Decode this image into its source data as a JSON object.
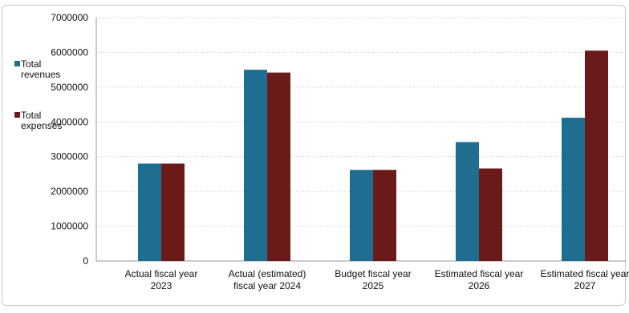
{
  "top_caption": "",
  "chart_data": {
    "type": "bar",
    "categories": [
      [
        "Actual fiscal year",
        "2023"
      ],
      [
        "Actual (estimated)",
        "fiscal year 2024"
      ],
      [
        "Budget fiscal year",
        "2025"
      ],
      [
        "Estimated fiscal year",
        "2026"
      ],
      [
        "Estimated fiscal year",
        "2027"
      ]
    ],
    "series": [
      {
        "name": [
          "Total",
          "revenues"
        ],
        "color": "#1f6e92",
        "values": [
          2800000,
          5500000,
          2620000,
          3420000,
          4120000
        ]
      },
      {
        "name": [
          "Total",
          "expenses"
        ],
        "color": "#6b1a1a",
        "values": [
          2800000,
          5420000,
          2620000,
          2660000,
          6050000
        ]
      }
    ],
    "ylim": [
      0,
      7000000
    ],
    "yticks": [
      0,
      1000000,
      2000000,
      3000000,
      4000000,
      5000000,
      6000000,
      7000000
    ],
    "grid": true,
    "legend": "left",
    "title": "",
    "xlabel": "",
    "ylabel": ""
  }
}
